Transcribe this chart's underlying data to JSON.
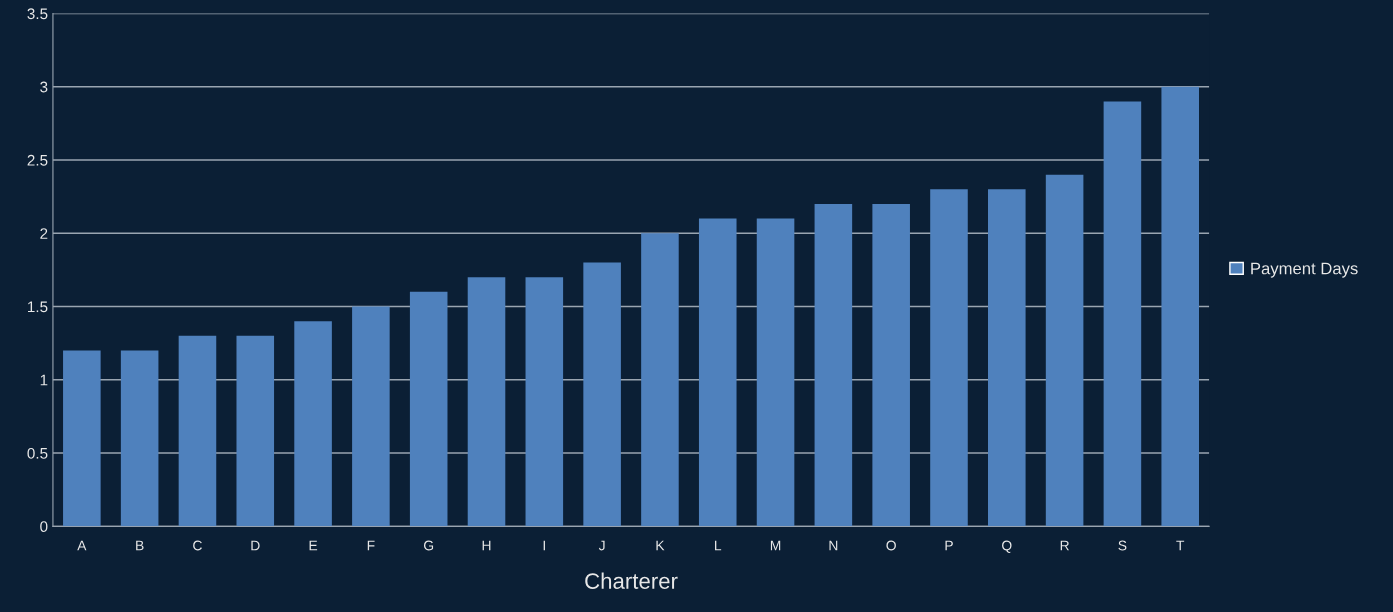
{
  "chart_data": {
    "type": "bar",
    "xlabel": "Charterer",
    "categories": [
      "A",
      "B",
      "C",
      "D",
      "E",
      "F",
      "G",
      "H",
      "I",
      "J",
      "K",
      "L",
      "M",
      "N",
      "O",
      "P",
      "Q",
      "R",
      "S",
      "T"
    ],
    "series": [
      {
        "name": "Payment Days",
        "color": "#4f81bd",
        "values": [
          1.2,
          1.2,
          1.3,
          1.3,
          1.4,
          1.5,
          1.6,
          1.7,
          1.7,
          1.8,
          2.0,
          2.1,
          2.1,
          2.2,
          2.2,
          2.3,
          2.3,
          2.4,
          2.9,
          3.0
        ]
      }
    ],
    "ylim": [
      0,
      3.5
    ],
    "yticks": [
      0,
      0.5,
      1,
      1.5,
      2,
      2.5,
      3,
      3.5
    ],
    "grid": "y",
    "legend": "right"
  }
}
